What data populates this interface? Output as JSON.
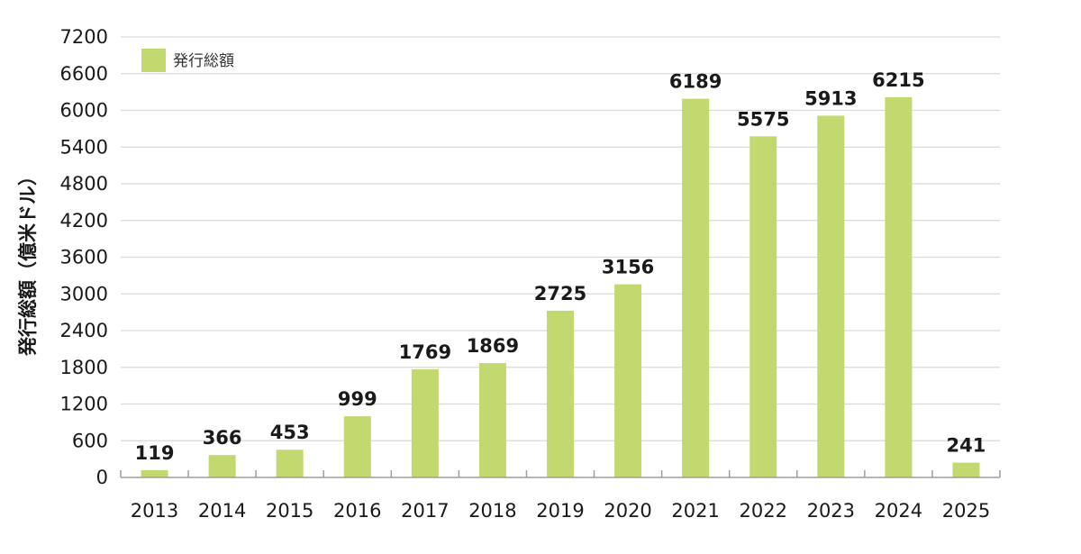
{
  "chart_data": {
    "type": "bar",
    "categories": [
      "2013",
      "2014",
      "2015",
      "2016",
      "2017",
      "2018",
      "2019",
      "2020",
      "2021",
      "2022",
      "2023",
      "2024",
      "2025"
    ],
    "series": [
      {
        "name": "発行総額",
        "values": [
          119,
          366,
          453,
          999,
          1769,
          1869,
          2725,
          3156,
          6189,
          5575,
          5913,
          6215,
          241
        ]
      }
    ],
    "data_labels": [
      "119",
      "366",
      "453",
      "999",
      "1769",
      "1869",
      "2725",
      "3156",
      "6189",
      "5575",
      "5913",
      "6215",
      "241"
    ],
    "title": "",
    "xlabel": "",
    "ylabel": "発行総額（億米ドル）",
    "ylim": [
      0,
      7200
    ],
    "yticks": [
      0,
      600,
      1200,
      1800,
      2400,
      3000,
      3600,
      4200,
      4800,
      5400,
      6000,
      6600,
      7200
    ],
    "grid": true,
    "legend": {
      "position": "top-left",
      "entries": [
        "発行総額"
      ]
    },
    "colors": {
      "bar": "#c2d96f",
      "grid": "#d9d9d9",
      "axis": "#9e9e9e",
      "text": "#1a1a1a"
    }
  }
}
